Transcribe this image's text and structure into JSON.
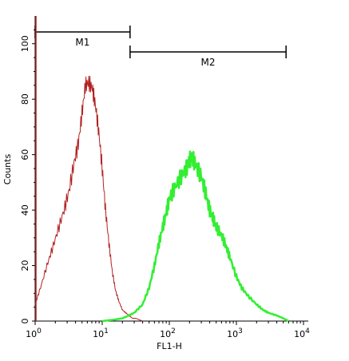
{
  "chart_data": {
    "type": "line",
    "xlabel": "FL1-H",
    "ylabel": "Counts",
    "x_scale": "log",
    "xlim": [
      1,
      10000
    ],
    "ylim": [
      0,
      110
    ],
    "x_ticks": [
      {
        "value": 1,
        "base": "10",
        "exp": "0"
      },
      {
        "value": 10,
        "base": "10",
        "exp": "1"
      },
      {
        "value": 100,
        "base": "10",
        "exp": "2"
      },
      {
        "value": 1000,
        "base": "10",
        "exp": "3"
      },
      {
        "value": 10000,
        "base": "10",
        "exp": "4"
      }
    ],
    "y_ticks": [
      "0",
      "20",
      "40",
      "60",
      "80",
      "100"
    ],
    "grid": false,
    "gates": [
      {
        "label": "M1",
        "x_start": 1,
        "x_end": 26
      },
      {
        "label": "M2",
        "x_start": 26,
        "x_end": 5500
      }
    ],
    "series": [
      {
        "color": "#b22222",
        "x": [
          1.0,
          1.2,
          1.5,
          1.8,
          2.2,
          2.7,
          3.2,
          3.8,
          4.4,
          5.0,
          5.6,
          6.3,
          7.1,
          7.9,
          8.9,
          10.0,
          11.2,
          12.6,
          14.1,
          15.8,
          17.8,
          20.0,
          22.4,
          25.1,
          28.2,
          31.6,
          35.5,
          40.0
        ],
        "y": [
          6,
          12,
          20,
          26,
          33,
          40,
          47,
          57,
          64,
          75,
          85,
          86,
          84,
          78,
          68,
          55,
          40,
          28,
          18,
          11,
          7,
          4,
          3,
          2,
          1,
          1,
          0.5,
          0
        ]
      },
      {
        "color": "#33ee33",
        "x": [
          10,
          15,
          20,
          25,
          30,
          40,
          50,
          60,
          70,
          80,
          90,
          100,
          120,
          150,
          180,
          200,
          220,
          250,
          300,
          350,
          400,
          450,
          500,
          600,
          700,
          800,
          1000,
          1200,
          1500,
          2000,
          2500,
          3000,
          4000,
          5000,
          6000
        ],
        "y": [
          0,
          0.5,
          1,
          2,
          3,
          6,
          12,
          20,
          28,
          34,
          39,
          44,
          48,
          52,
          55,
          58,
          59,
          56,
          52,
          46,
          40,
          37,
          34,
          31,
          27,
          23,
          16,
          12,
          9,
          6,
          4,
          3,
          2,
          1,
          0
        ]
      }
    ]
  }
}
